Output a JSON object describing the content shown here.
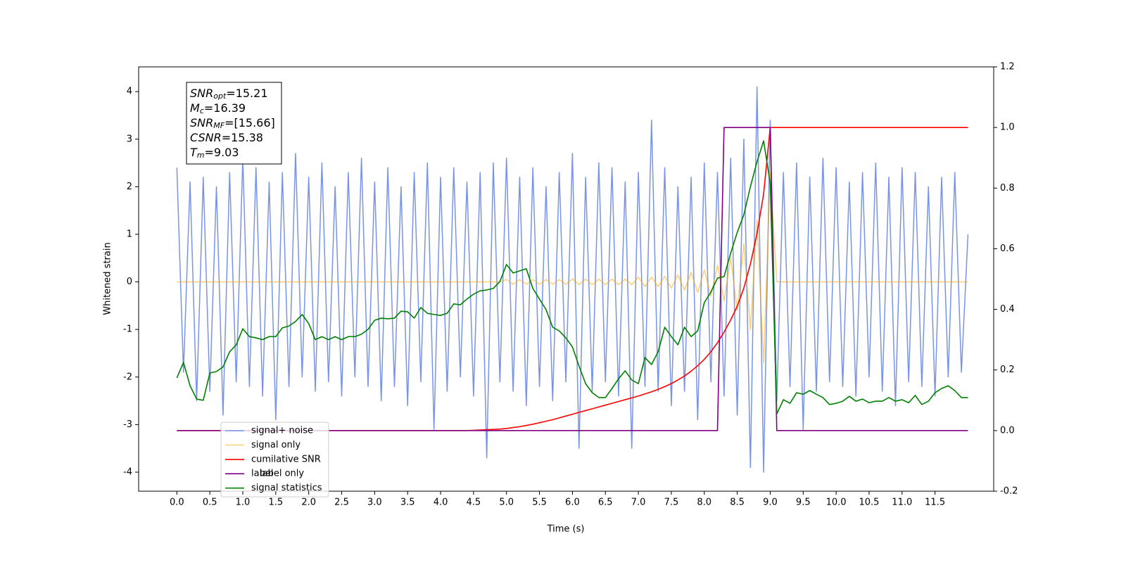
{
  "chart_data": {
    "type": "line",
    "xlabel": "Time (s)",
    "ylabel": "Whitened strain",
    "xlim": [
      -0.58,
      12.39
    ],
    "ylim": [
      -4.4,
      4.52
    ],
    "y2lim": [
      -0.2,
      1.2
    ],
    "xticks": [
      {
        "value": 0,
        "label": "0.0"
      },
      0.5,
      {
        "value": 1,
        "label": "1.0"
      },
      1.5,
      {
        "value": 2,
        "label": "2.0"
      },
      2.5,
      {
        "value": 3,
        "label": "3.0"
      },
      3.5,
      {
        "value": 4,
        "label": "4.0"
      },
      4.5,
      {
        "value": 5,
        "label": "5.0"
      },
      5.5,
      {
        "value": 6,
        "label": "6.0"
      },
      6.5,
      {
        "value": 7,
        "label": "7.0"
      },
      7.5,
      {
        "value": 8,
        "label": "8.0"
      },
      8.5,
      {
        "value": 9,
        "label": "9.0"
      },
      9.5,
      {
        "value": 10,
        "label": "10.0"
      },
      10.5,
      {
        "value": 11,
        "label": "11.0"
      },
      11.5
    ],
    "yticks": [
      -4,
      -3,
      -2,
      -1,
      0,
      1,
      2,
      3,
      4
    ],
    "y2ticks": [
      -0.2,
      {
        "value": 0,
        "label": "0.0"
      },
      0.2,
      0.4,
      0.6,
      0.8,
      {
        "value": 1,
        "label": "1.0"
      },
      1.2
    ],
    "legend_position": "lower left",
    "legend_ghost": "label only",
    "annotation": [
      {
        "symbol": "SNR",
        "subscript": "opt",
        "value_text": "=15.21"
      },
      {
        "symbol": "M",
        "subscript": "c",
        "value_text": "=16.39"
      },
      {
        "symbol": "SNR",
        "subscript": "MF",
        "value_text": "=[15.66]"
      },
      {
        "symbol": "CSNR",
        "value_text": "=15.38"
      },
      {
        "symbol": "T",
        "subscript": "m",
        "value_text": "=9.03"
      }
    ],
    "x": [
      0.0,
      0.1,
      0.2,
      0.3,
      0.4,
      0.5,
      0.6,
      0.7,
      0.8,
      0.9,
      1.0,
      1.1,
      1.2,
      1.3,
      1.4,
      1.5,
      1.6,
      1.7,
      1.8,
      1.9,
      2.0,
      2.1,
      2.2,
      2.3,
      2.4,
      2.5,
      2.6,
      2.7,
      2.8,
      2.9,
      3.0,
      3.1,
      3.2,
      3.3,
      3.4,
      3.5,
      3.6,
      3.7,
      3.8,
      3.9,
      4.0,
      4.1,
      4.2,
      4.3,
      4.4,
      4.5,
      4.6,
      4.7,
      4.8,
      4.9,
      5.0,
      5.1,
      5.2,
      5.3,
      5.4,
      5.5,
      5.6,
      5.7,
      5.8,
      5.9,
      6.0,
      6.1,
      6.2,
      6.3,
      6.4,
      6.5,
      6.6,
      6.7,
      6.8,
      6.9,
      7.0,
      7.1,
      7.2,
      7.3,
      7.4,
      7.5,
      7.6,
      7.7,
      7.8,
      7.9,
      8.0,
      8.1,
      8.2,
      8.3,
      8.4,
      8.5,
      8.6,
      8.7,
      8.8,
      8.9,
      9.0,
      9.1,
      9.2,
      9.3,
      9.4,
      9.5,
      9.6,
      9.7,
      9.8,
      9.9,
      10.0,
      10.1,
      10.2,
      10.3,
      10.4,
      10.5,
      10.6,
      10.7,
      10.8,
      10.9,
      11.0,
      11.1,
      11.2,
      11.3,
      11.4,
      11.5,
      11.6,
      11.7,
      11.8,
      11.9,
      12.0
    ],
    "series": [
      {
        "name": "signal+ noise",
        "color": "#7994e6",
        "values": [
          2.4,
          -1.9,
          2.1,
          -2.5,
          2.2,
          -2.3,
          2.0,
          -2.8,
          2.3,
          -2.1,
          2.6,
          -2.2,
          2.4,
          -2.4,
          2.1,
          -2.9,
          2.3,
          -2.2,
          2.7,
          -2.0,
          2.2,
          -2.3,
          2.5,
          -2.1,
          2.0,
          -2.4,
          2.3,
          -2.0,
          2.6,
          -2.2,
          2.1,
          -2.5,
          2.4,
          -2.2,
          2.0,
          -2.6,
          2.3,
          -2.1,
          2.5,
          -3.1,
          2.2,
          -2.3,
          2.4,
          -2.0,
          2.1,
          -2.4,
          2.3,
          -3.7,
          2.5,
          -2.1,
          2.6,
          -2.3,
          2.2,
          -2.6,
          2.4,
          -2.2,
          2.0,
          -2.5,
          2.3,
          -2.1,
          2.7,
          -3.5,
          2.2,
          -2.3,
          2.5,
          -2.1,
          2.4,
          -2.4,
          2.1,
          -3.5,
          2.3,
          -2.2,
          3.4,
          -2.3,
          2.4,
          -2.6,
          2.0,
          -2.3,
          2.2,
          -2.9,
          2.5,
          -2.1,
          2.3,
          -2.4,
          2.6,
          -2.8,
          3.0,
          -3.9,
          4.1,
          -4.0,
          3.4,
          -2.5,
          2.3,
          -2.2,
          2.5,
          -3.1,
          2.2,
          -2.3,
          2.6,
          -2.1,
          2.4,
          -2.2,
          2.1,
          -2.4,
          2.3,
          -2.0,
          2.5,
          -2.3,
          2.2,
          -2.6,
          2.4,
          -2.1,
          2.3,
          -2.2,
          2.0,
          -2.4,
          2.2,
          -2.0,
          2.3,
          -1.9,
          1.0
        ]
      },
      {
        "name": "signal only",
        "color": "#ffa500",
        "values": [
          0,
          0,
          0,
          0,
          0,
          0,
          0,
          0,
          0,
          0,
          0,
          0,
          0,
          0,
          0,
          0,
          0,
          0,
          0,
          0,
          0,
          0,
          0,
          0,
          0,
          0,
          0,
          0,
          0,
          0,
          0,
          0,
          0,
          0,
          0,
          0,
          0,
          0,
          0,
          0,
          0,
          0,
          0,
          0,
          0,
          0,
          0,
          0,
          0,
          0,
          0.05,
          -0.05,
          0.05,
          -0.05,
          0.05,
          -0.05,
          0.05,
          -0.05,
          0.05,
          -0.05,
          0.06,
          -0.06,
          0.06,
          -0.06,
          0.06,
          -0.06,
          0.06,
          -0.06,
          0.06,
          -0.06,
          0.1,
          -0.1,
          0.1,
          -0.1,
          0.12,
          -0.13,
          0.15,
          -0.17,
          0.2,
          -0.22,
          0.25,
          -0.3,
          0.35,
          -0.4,
          0.5,
          -0.6,
          0.8,
          -1.0,
          1.3,
          -1.7,
          2.3,
          0,
          0,
          0,
          0,
          0,
          0,
          0,
          0,
          0,
          0,
          0,
          0,
          0,
          0,
          0,
          0,
          0,
          0,
          0,
          0,
          0,
          0,
          0,
          0,
          0,
          0,
          0,
          0,
          0,
          0
        ]
      },
      {
        "name": "cumilative SNR",
        "color": "#ff0000",
        "axis": "y2",
        "values": [
          0,
          0,
          0,
          0,
          0,
          0,
          0,
          0,
          0,
          0,
          0,
          0,
          0,
          0,
          0,
          0,
          0,
          0,
          0,
          0,
          0,
          0,
          0,
          0,
          0,
          0,
          0,
          0,
          0,
          0,
          0,
          0,
          0,
          0,
          0,
          0,
          0,
          0,
          0,
          0,
          0,
          0,
          0,
          0,
          0,
          0.001,
          0.002,
          0.003,
          0.004,
          0.005,
          0.007,
          0.01,
          0.013,
          0.017,
          0.021,
          0.026,
          0.031,
          0.036,
          0.042,
          0.048,
          0.054,
          0.06,
          0.066,
          0.072,
          0.078,
          0.084,
          0.09,
          0.096,
          0.102,
          0.108,
          0.114,
          0.121,
          0.128,
          0.136,
          0.145,
          0.155,
          0.167,
          0.18,
          0.196,
          0.214,
          0.235,
          0.26,
          0.29,
          0.325,
          0.365,
          0.41,
          0.47,
          0.55,
          0.65,
          0.78,
          1,
          1,
          1,
          1,
          1,
          1,
          1,
          1,
          1,
          1,
          1,
          1,
          1,
          1,
          1,
          1,
          1,
          1,
          1,
          1,
          1,
          1,
          1,
          1,
          1,
          1,
          1,
          1,
          1,
          1,
          1
        ]
      },
      {
        "name": "label",
        "color": "#800080",
        "axis": "y2",
        "values": [
          0,
          0,
          0,
          0,
          0,
          0,
          0,
          0,
          0,
          0,
          0,
          0,
          0,
          0,
          0,
          0,
          0,
          0,
          0,
          0,
          0,
          0,
          0,
          0,
          0,
          0,
          0,
          0,
          0,
          0,
          0,
          0,
          0,
          0,
          0,
          0,
          0,
          0,
          0,
          0,
          0,
          0,
          0,
          0,
          0,
          0,
          0,
          0,
          0,
          0,
          0,
          0,
          0,
          0,
          0,
          0,
          0,
          0,
          0,
          0,
          0,
          0,
          0,
          0,
          0,
          0,
          0,
          0,
          0,
          0,
          0,
          0,
          0,
          0,
          0,
          0,
          0,
          0,
          0,
          0,
          0,
          0,
          0,
          1,
          1,
          1,
          1,
          1,
          1,
          1,
          1,
          0,
          0,
          0,
          0,
          0,
          0,
          0,
          0,
          0,
          0,
          0,
          0,
          0,
          0,
          0,
          0,
          0,
          0,
          0,
          0,
          0,
          0,
          0,
          0,
          0,
          0,
          0,
          0,
          0,
          0
        ]
      },
      {
        "name": "signal statistics",
        "color": "#008000",
        "axis": "y2",
        "values": [
          0.174,
          0.225,
          0.148,
          0.104,
          0.1,
          0.19,
          0.195,
          0.21,
          0.26,
          0.283,
          0.336,
          0.31,
          0.306,
          0.3,
          0.31,
          0.31,
          0.339,
          0.345,
          0.36,
          0.383,
          0.353,
          0.3,
          0.31,
          0.3,
          0.31,
          0.3,
          0.31,
          0.31,
          0.318,
          0.334,
          0.364,
          0.371,
          0.369,
          0.371,
          0.394,
          0.392,
          0.371,
          0.406,
          0.387,
          0.383,
          0.38,
          0.387,
          0.418,
          0.415,
          0.434,
          0.45,
          0.461,
          0.464,
          0.469,
          0.492,
          0.548,
          0.52,
          0.527,
          0.534,
          0.469,
          0.434,
          0.399,
          0.341,
          0.329,
          0.306,
          0.276,
          0.213,
          0.155,
          0.125,
          0.109,
          0.109,
          0.139,
          0.171,
          0.197,
          0.167,
          0.155,
          0.241,
          0.218,
          0.26,
          0.341,
          0.31,
          0.283,
          0.341,
          0.31,
          0.329,
          0.422,
          0.457,
          0.503,
          0.508,
          0.585,
          0.654,
          0.712,
          0.805,
          0.887,
          0.956,
          0.817,
          0.055,
          0.102,
          0.09,
          0.125,
          0.12,
          0.132,
          0.12,
          0.109,
          0.086,
          0.09,
          0.097,
          0.113,
          0.097,
          0.104,
          0.092,
          0.097,
          0.097,
          0.109,
          0.097,
          0.102,
          0.092,
          0.116,
          0.086,
          0.097,
          0.125,
          0.139,
          0.148,
          0.132,
          0.109,
          0.109
        ]
      }
    ]
  }
}
